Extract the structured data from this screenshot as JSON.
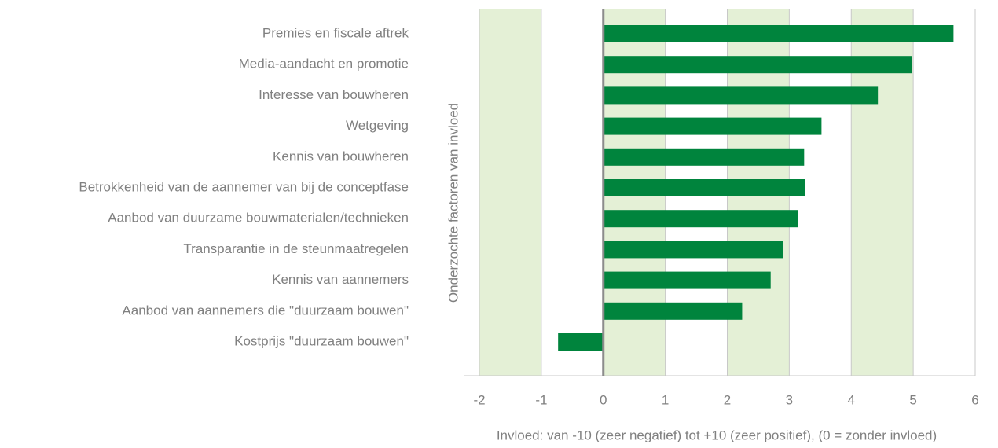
{
  "chart_data": {
    "type": "barh",
    "categories": [
      "Premies en fiscale aftrek",
      "Media-aandacht en promotie",
      "Interesse van bouwheren",
      "Wetgeving",
      "Kennis van bouwheren",
      "Betrokkenheid van de aannemer van bij de conceptfase",
      "Aanbod van duurzame bouwmaterialen/technieken",
      "Transparantie in de steunmaatregelen",
      "Kennis van aannemers",
      "Aanbod van aannemers die \"duurzaam bouwen\"",
      "Kostprijs \"duurzaam bouwen\""
    ],
    "values": [
      5.65,
      4.98,
      4.43,
      3.52,
      3.24,
      3.25,
      3.14,
      2.9,
      2.7,
      2.24,
      -0.73
    ],
    "color": "#00843d",
    "xlim": [
      -2,
      6
    ],
    "xticks": [
      -2,
      -1,
      0,
      1,
      2,
      3,
      4,
      5,
      6
    ],
    "grid": true,
    "xlabel": "Invloed: van -10 (zeer negatief) tot +10 (zeer positief), (0 = zonder invloed)",
    "ylabel": "Onderzochte factoren van invloed"
  }
}
